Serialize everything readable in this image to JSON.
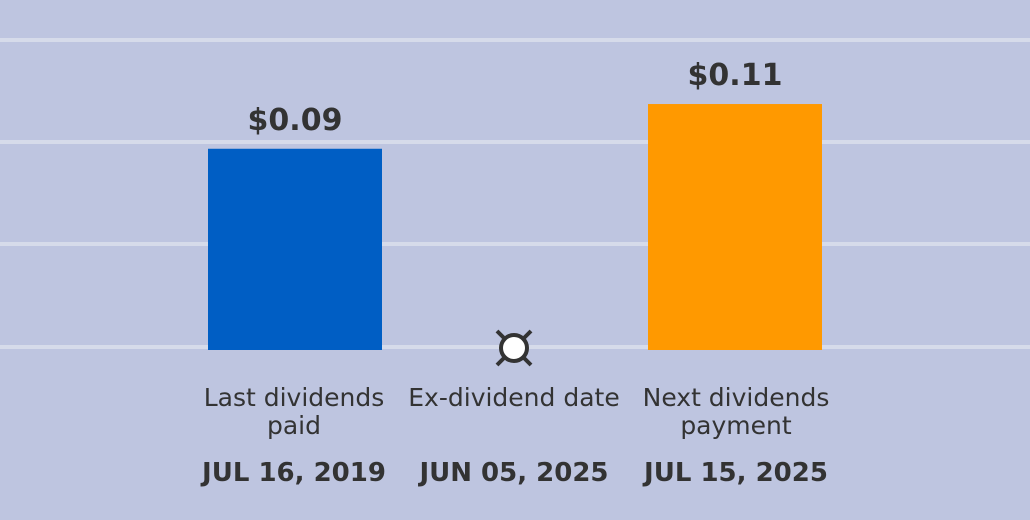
{
  "chart_data": {
    "type": "bar",
    "categories": [
      "Last dividends paid",
      "Ex-dividend date",
      "Next dividends payment"
    ],
    "dates": [
      "JUL 16, 2019",
      "JUN 05, 2025",
      "JUL 15, 2025"
    ],
    "values": [
      0.09,
      null,
      0.11
    ],
    "value_labels": [
      "$0.09",
      "",
      "$0.11"
    ],
    "colors": [
      "#005ec4",
      null,
      "#ff9900"
    ],
    "marker_color": "#ffffff",
    "grid": true,
    "ylim": [
      0,
      0.15
    ]
  }
}
